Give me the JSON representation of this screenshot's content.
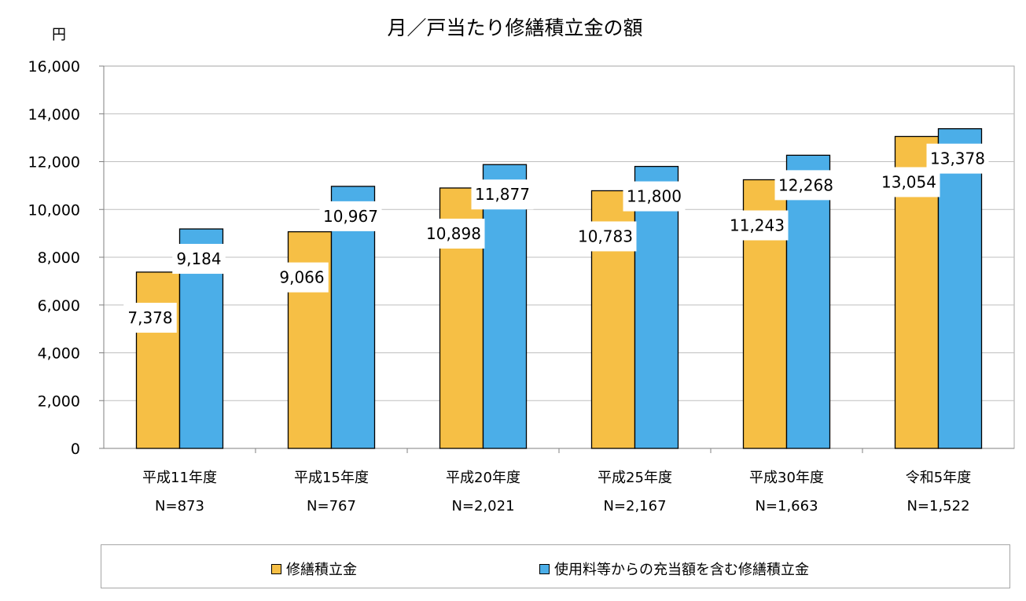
{
  "chart_data": {
    "type": "bar",
    "title": "月／戸当たり修繕積立金の額",
    "ylabel": "円",
    "ylim": [
      0,
      16000
    ],
    "yticks": [
      "0",
      "2,000",
      "4,000",
      "6,000",
      "8,000",
      "10,000",
      "12,000",
      "14,000",
      "16,000"
    ],
    "grid": true,
    "legend_position": "bottom",
    "categories": [
      "平成11年度",
      "平成15年度",
      "平成20年度",
      "平成25年度",
      "平成30年度",
      "令和5年度"
    ],
    "category_n": [
      "N=873",
      "N=767",
      "N=2,021",
      "N=2,167",
      "N=1,663",
      "N=1,522"
    ],
    "series": [
      {
        "name": "修繕積立金",
        "color": "#F6BF45",
        "values": [
          7378,
          9066,
          10898,
          10783,
          11243,
          13054
        ],
        "labels": [
          "7,378",
          "9,066",
          "10,898",
          "10,783",
          "11,243",
          "13,054"
        ]
      },
      {
        "name": "使用料等からの充当額を含む修繕積立金",
        "color": "#4BAEE8",
        "values": [
          9184,
          10967,
          11877,
          11800,
          12268,
          13378
        ],
        "labels": [
          "9,184",
          "10,967",
          "11,877",
          "11,800",
          "12,268",
          "13,378"
        ]
      }
    ]
  }
}
